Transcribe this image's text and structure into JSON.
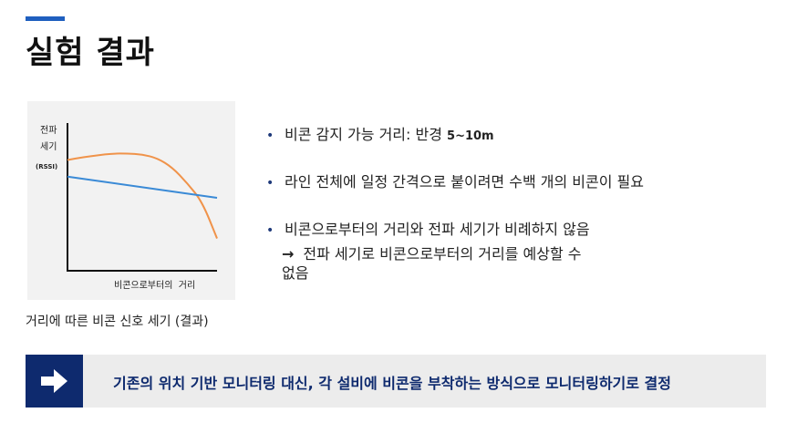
{
  "page": {
    "title": "실험 결과"
  },
  "chart": {
    "caption": "거리에 따른 비콘 신호 세기 (결과)"
  },
  "chart_data": {
    "type": "line",
    "ylabel_line1": "전파",
    "ylabel_line2": "세기",
    "ylabel_unit": "(RSSI)",
    "xlabel": "비콘으로부터의  거리",
    "series": [
      {
        "color": "#f0934a",
        "x": [
          0,
          0.1,
          0.2,
          0.3,
          0.4,
          0.5,
          0.6,
          0.7,
          0.8,
          0.9,
          1.0
        ],
        "y": [
          0.6,
          0.63,
          0.65,
          0.67,
          0.67,
          0.66,
          0.62,
          0.52,
          0.35,
          0.15,
          -0.25
        ]
      },
      {
        "color": "#3a8ad6",
        "x": [
          0,
          1.0
        ],
        "y": [
          0.42,
          0.19
        ]
      }
    ]
  },
  "bullets": [
    {
      "text": "비콘 감지 가능 거리: 반경 ",
      "highlight": "5~10m"
    },
    {
      "text": "라인 전체에 일정 간격으로 붙이려면 수백 개의 비콘이 필요",
      "highlight": ""
    },
    {
      "text": "비콘으로부터의 거리와 전파 세기가 비례하지 않음",
      "highlight": ""
    }
  ],
  "sub_point": {
    "arrow": "→",
    "line1": "전파 세기로 비콘으로부터의 거리를 예상할 수",
    "line2": "없음"
  },
  "conclusion": {
    "icon": "arrow-right-icon",
    "text": "기존의 위치 기반 모니터링 대신, 각 설비에 비콘을 부착하는 방식으로 모니터링하기로 결정"
  }
}
